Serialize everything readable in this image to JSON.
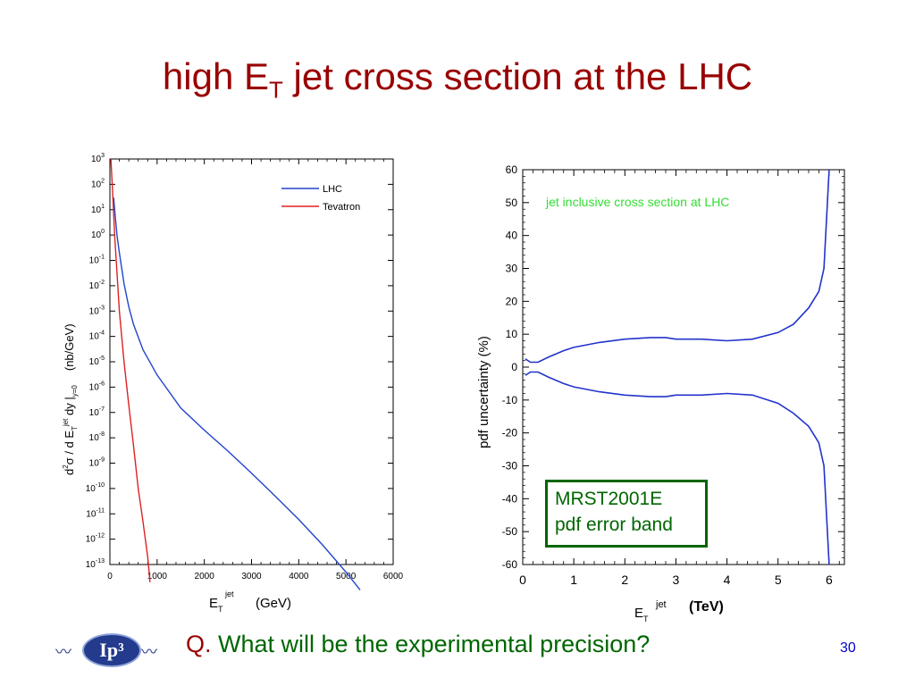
{
  "slide": {
    "title_main": "high E",
    "title_sub": "T",
    "title_rest": " jet cross section at the LHC",
    "question_q": "Q.",
    "question_text": " What will be the experimental precision?",
    "page_number": "30",
    "logo_text": "Ip³"
  },
  "colors": {
    "title": "#990000",
    "question": "#006600",
    "lhc": "#2244cc",
    "tevatron": "#dd2222",
    "band": "#2233cc",
    "annotation": "#33dd33"
  },
  "chart_data": [
    {
      "type": "line",
      "xlabel_main": "E",
      "xlabel_sub": "T",
      "xlabel_sup": "jet",
      "xlabel_unit": "(GeV)",
      "ylabel_parts": {
        "d": "d",
        "two": "2",
        "sigma": "σ / d E",
        "T": "T",
        "jet": "jet",
        "dy": " dy |",
        "y0": "y=0",
        "unit": "(nb/GeV)"
      },
      "xlim": [
        0,
        6000
      ],
      "x_ticks": [
        "0",
        "1000",
        "2000",
        "3000",
        "4000",
        "5000",
        "6000"
      ],
      "x_tick_values": [
        0,
        1000,
        2000,
        3000,
        4000,
        5000,
        6000
      ],
      "y_scale": "log",
      "ylim": [
        1e-13,
        1000.0
      ],
      "y_tick_exponents": [
        3,
        2,
        1,
        0,
        -1,
        -2,
        -3,
        -4,
        -5,
        -6,
        -7,
        -8,
        -9,
        -10,
        -11,
        -12,
        -13
      ],
      "y_tick_base": "10",
      "legend": "top-right",
      "series": [
        {
          "name": "LHC",
          "color": "#2244cc",
          "x": [
            80,
            100,
            150,
            200,
            300,
            400,
            500,
            700,
            1000,
            1500,
            2000,
            2500,
            3000,
            3500,
            4000,
            4500,
            5000,
            5300
          ],
          "y": [
            30,
            10,
            1,
            0.2,
            0.012,
            0.0015,
            0.0003,
            3e-05,
            3e-06,
            1.5e-07,
            2e-08,
            3e-09,
            4e-10,
            5e-11,
            6e-12,
            6e-13,
            5e-14,
            1e-14
          ]
        },
        {
          "name": "Tevatron",
          "color": "#dd2222",
          "x": [
            20,
            50,
            100,
            200,
            300,
            400,
            500,
            600,
            700,
            800,
            850
          ],
          "y": [
            1000,
            100,
            1,
            0.001,
            1e-05,
            2e-07,
            5e-09,
            1e-10,
            5e-12,
            2e-13,
            2e-14
          ]
        }
      ]
    },
    {
      "type": "line",
      "ylabel": "pdf uncertainty (%)",
      "xlabel_main": "E",
      "xlabel_sub": "T",
      "xlabel_sup": "jet",
      "xlabel_unit": "(TeV)",
      "xlim": [
        0,
        6.3
      ],
      "ylim": [
        -60,
        60
      ],
      "x_ticks": [
        "0",
        "1",
        "2",
        "3",
        "4",
        "5",
        "6"
      ],
      "x_tick_values": [
        0,
        1,
        2,
        3,
        4,
        5,
        6
      ],
      "y_ticks": [
        "60",
        "50",
        "40",
        "30",
        "20",
        "10",
        "0",
        "-10",
        "-20",
        "-30",
        "-40",
        "-50",
        "-60"
      ],
      "y_tick_values": [
        60,
        50,
        40,
        30,
        20,
        10,
        0,
        -10,
        -20,
        -30,
        -40,
        -50,
        -60
      ],
      "annotation": "jet inclusive cross section at LHC",
      "box_line1": "MRST2001E",
      "box_line2": "pdf error band",
      "series": [
        {
          "color": "#2233cc",
          "x": [
            0.05,
            0.15,
            0.3,
            0.5,
            0.8,
            1.0,
            1.5,
            2.0,
            2.5,
            2.8,
            3.0,
            3.5,
            4.0,
            4.5,
            5.0,
            5.3,
            5.6,
            5.8,
            5.9,
            5.95,
            6.0
          ],
          "y": [
            2.5,
            1.5,
            1.5,
            3,
            5,
            6,
            7.5,
            8.5,
            9,
            9,
            8.5,
            8.5,
            8,
            8.5,
            10.5,
            13,
            18,
            23,
            30,
            45,
            60
          ]
        },
        {
          "color": "#2233cc",
          "x": [
            0.05,
            0.15,
            0.3,
            0.5,
            0.8,
            1.0,
            1.5,
            2.0,
            2.5,
            2.8,
            3.0,
            3.5,
            4.0,
            4.5,
            5.0,
            5.3,
            5.6,
            5.8,
            5.9,
            5.95,
            6.0
          ],
          "y": [
            -2.5,
            -1.5,
            -1.5,
            -3,
            -5,
            -6,
            -7.5,
            -8.5,
            -9,
            -9,
            -8.5,
            -8.5,
            -8,
            -8.5,
            -11,
            -14,
            -18,
            -23,
            -30,
            -45,
            -60
          ]
        }
      ]
    }
  ]
}
